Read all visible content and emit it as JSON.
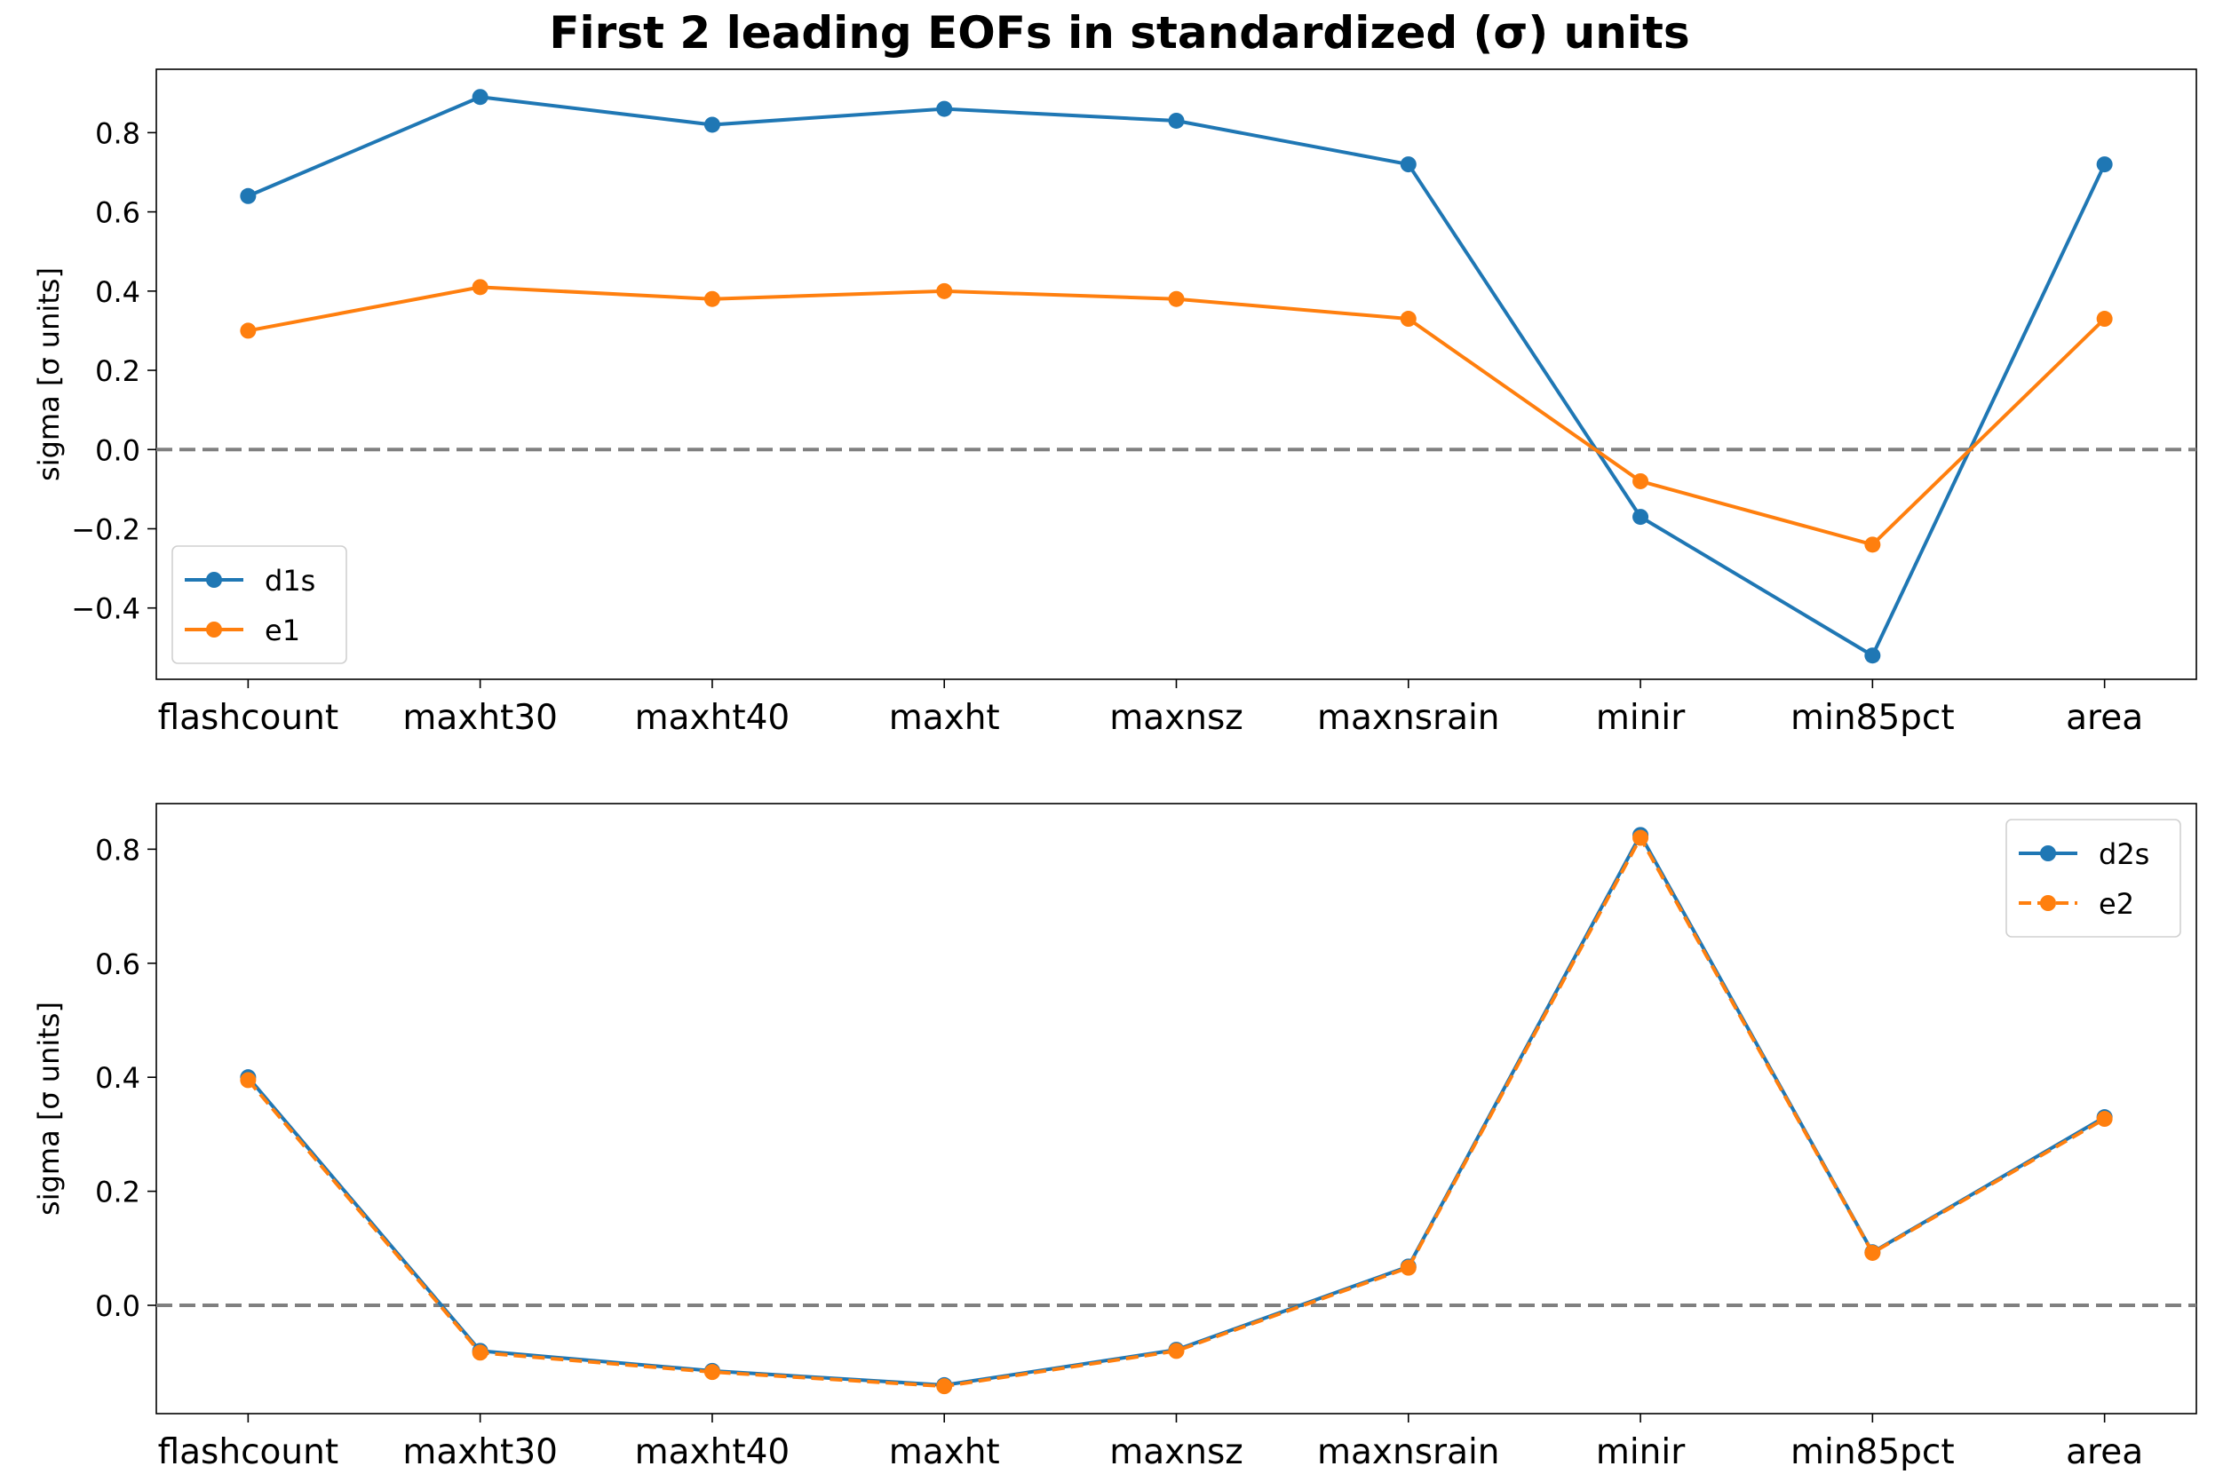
{
  "figure": {
    "title": "First 2 leading EOFs in standardized (σ) units"
  },
  "chart_data": [
    {
      "type": "line",
      "categories": [
        "flashcount",
        "maxht30",
        "maxht40",
        "maxht",
        "maxnsz",
        "maxnsrain",
        "minir",
        "min85pct",
        "area"
      ],
      "series": [
        {
          "name": "d1s",
          "values": [
            0.64,
            0.89,
            0.82,
            0.86,
            0.83,
            0.72,
            -0.17,
            -0.52,
            0.72
          ],
          "color": "#1f77b4",
          "linestyle": "solid",
          "marker": "circle"
        },
        {
          "name": "e1",
          "values": [
            0.3,
            0.41,
            0.38,
            0.4,
            0.38,
            0.33,
            -0.08,
            -0.24,
            0.33
          ],
          "color": "#ff7f0e",
          "linestyle": "solid",
          "marker": "circle"
        }
      ],
      "ylabel": "sigma [σ units]",
      "ylim": [
        -0.58,
        0.96
      ],
      "yticks": [
        -0.4,
        -0.2,
        0.0,
        0.2,
        0.4,
        0.6,
        0.8
      ],
      "ytick_labels": [
        "−0.4",
        "−0.2",
        "0.0",
        "0.2",
        "0.4",
        "0.6",
        "0.8"
      ],
      "zero_line": {
        "y": 0,
        "color": "#808080",
        "style": "dashed"
      },
      "legend": {
        "position": "lower-left",
        "entries": [
          "d1s",
          "e1"
        ]
      },
      "grid": false
    },
    {
      "type": "line",
      "categories": [
        "flashcount",
        "maxht30",
        "maxht40",
        "maxht",
        "maxnsz",
        "maxnsrain",
        "minir",
        "min85pct",
        "area"
      ],
      "series": [
        {
          "name": "d2s",
          "values": [
            0.4,
            -0.08,
            -0.115,
            -0.14,
            -0.078,
            0.068,
            0.825,
            0.093,
            0.33
          ],
          "color": "#1f77b4",
          "linestyle": "solid",
          "marker": "circle"
        },
        {
          "name": "e2",
          "values": [
            0.395,
            -0.083,
            -0.117,
            -0.142,
            -0.08,
            0.066,
            0.82,
            0.092,
            0.327
          ],
          "color": "#ff7f0e",
          "linestyle": "dashed",
          "marker": "circle"
        }
      ],
      "ylabel": "sigma [σ units]",
      "ylim": [
        -0.19,
        0.88
      ],
      "yticks": [
        0.0,
        0.2,
        0.4,
        0.6,
        0.8
      ],
      "ytick_labels": [
        "0.0",
        "0.2",
        "0.4",
        "0.6",
        "0.8"
      ],
      "zero_line": {
        "y": 0,
        "color": "#808080",
        "style": "dashed"
      },
      "legend": {
        "position": "upper-right",
        "entries": [
          "d2s",
          "e2"
        ]
      },
      "grid": false
    }
  ]
}
